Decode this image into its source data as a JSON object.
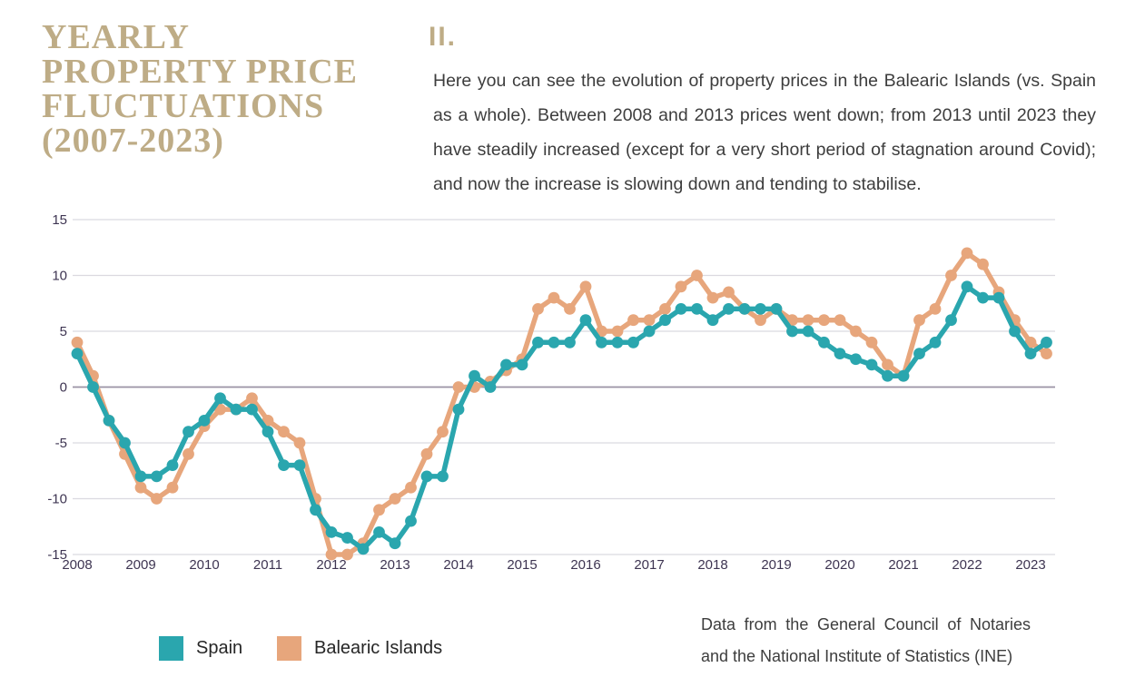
{
  "header": {
    "title_lines": [
      "YEARLY",
      "PROPERTY PRICE",
      "FLUCTUATIONS",
      "(2007-2023)"
    ],
    "section_number": "II.",
    "paragraph": "Here you can see the evolution of property prices in the Balearic Islands (vs. Spain as a whole). Between 2008 and 2013 prices went down; from 2013 until 2023 they have steadily increased (except for a very short period of stagnation around Covid); and now the increase is slowing down and tending to stabilise."
  },
  "colors": {
    "spain": "#2aa6ae",
    "balearic": "#e7a67c",
    "title_accent": "#beac86",
    "axis_label": "#3e3552",
    "grid": "#dbd9e0",
    "zero_line": "#9a93a5",
    "body_text": "#3d3d3d"
  },
  "chart_data": {
    "type": "line",
    "title": "",
    "xlabel": "",
    "ylabel": "",
    "x_tick_labels": [
      "2008",
      "2009",
      "2010",
      "2011",
      "2012",
      "2013",
      "2014",
      "2015",
      "2016",
      "2017",
      "2018",
      "2019",
      "2020",
      "2021",
      "2022",
      "2023"
    ],
    "y_ticks": [
      15,
      10,
      5,
      0,
      -5,
      -10,
      -15
    ],
    "ylim": [
      -15,
      15
    ],
    "points_per_year": 4,
    "x_start": "2008 Q1",
    "x_end": "2023 Q2",
    "grid": "horizontal-only",
    "legend_position": "bottom-left",
    "series": [
      {
        "name": "Balearic Islands",
        "color": "#e7a67c",
        "values": [
          4,
          1,
          -3,
          -6,
          -9,
          -10,
          -9,
          -6,
          -3.5,
          -2,
          -2,
          -1,
          -3,
          -4,
          -5,
          -10,
          -15,
          -15,
          -14,
          -11,
          -10,
          -9,
          -6,
          -4,
          0,
          0,
          0.5,
          1.5,
          2.5,
          7,
          8,
          7,
          9,
          5,
          5,
          6,
          6,
          7,
          9,
          10,
          8,
          8.5,
          7,
          6,
          7,
          6,
          6,
          6,
          6,
          5,
          4,
          2,
          1,
          6,
          7,
          10,
          12,
          11,
          8.5,
          6,
          4,
          3
        ]
      },
      {
        "name": "Spain",
        "color": "#2aa6ae",
        "values": [
          3,
          0,
          -3,
          -5,
          -8,
          -8,
          -7,
          -4,
          -3,
          -1,
          -2,
          -2,
          -4,
          -7,
          -7,
          -11,
          -13,
          -13.5,
          -14.5,
          -13,
          -14,
          -12,
          -8,
          -8,
          -2,
          1,
          0,
          2,
          2,
          4,
          4,
          4,
          6,
          4,
          4,
          4,
          5,
          6,
          7,
          7,
          6,
          7,
          7,
          7,
          7,
          5,
          5,
          4,
          3,
          2.5,
          2,
          1,
          1,
          3,
          4,
          6,
          9,
          8,
          8,
          5,
          3,
          4
        ]
      }
    ]
  },
  "legend": {
    "spain_label": "Spain",
    "balearic_label": "Balearic Islands"
  },
  "source_note": "Data from the General Council of Notaries and the National Institute of Statistics (INE)"
}
